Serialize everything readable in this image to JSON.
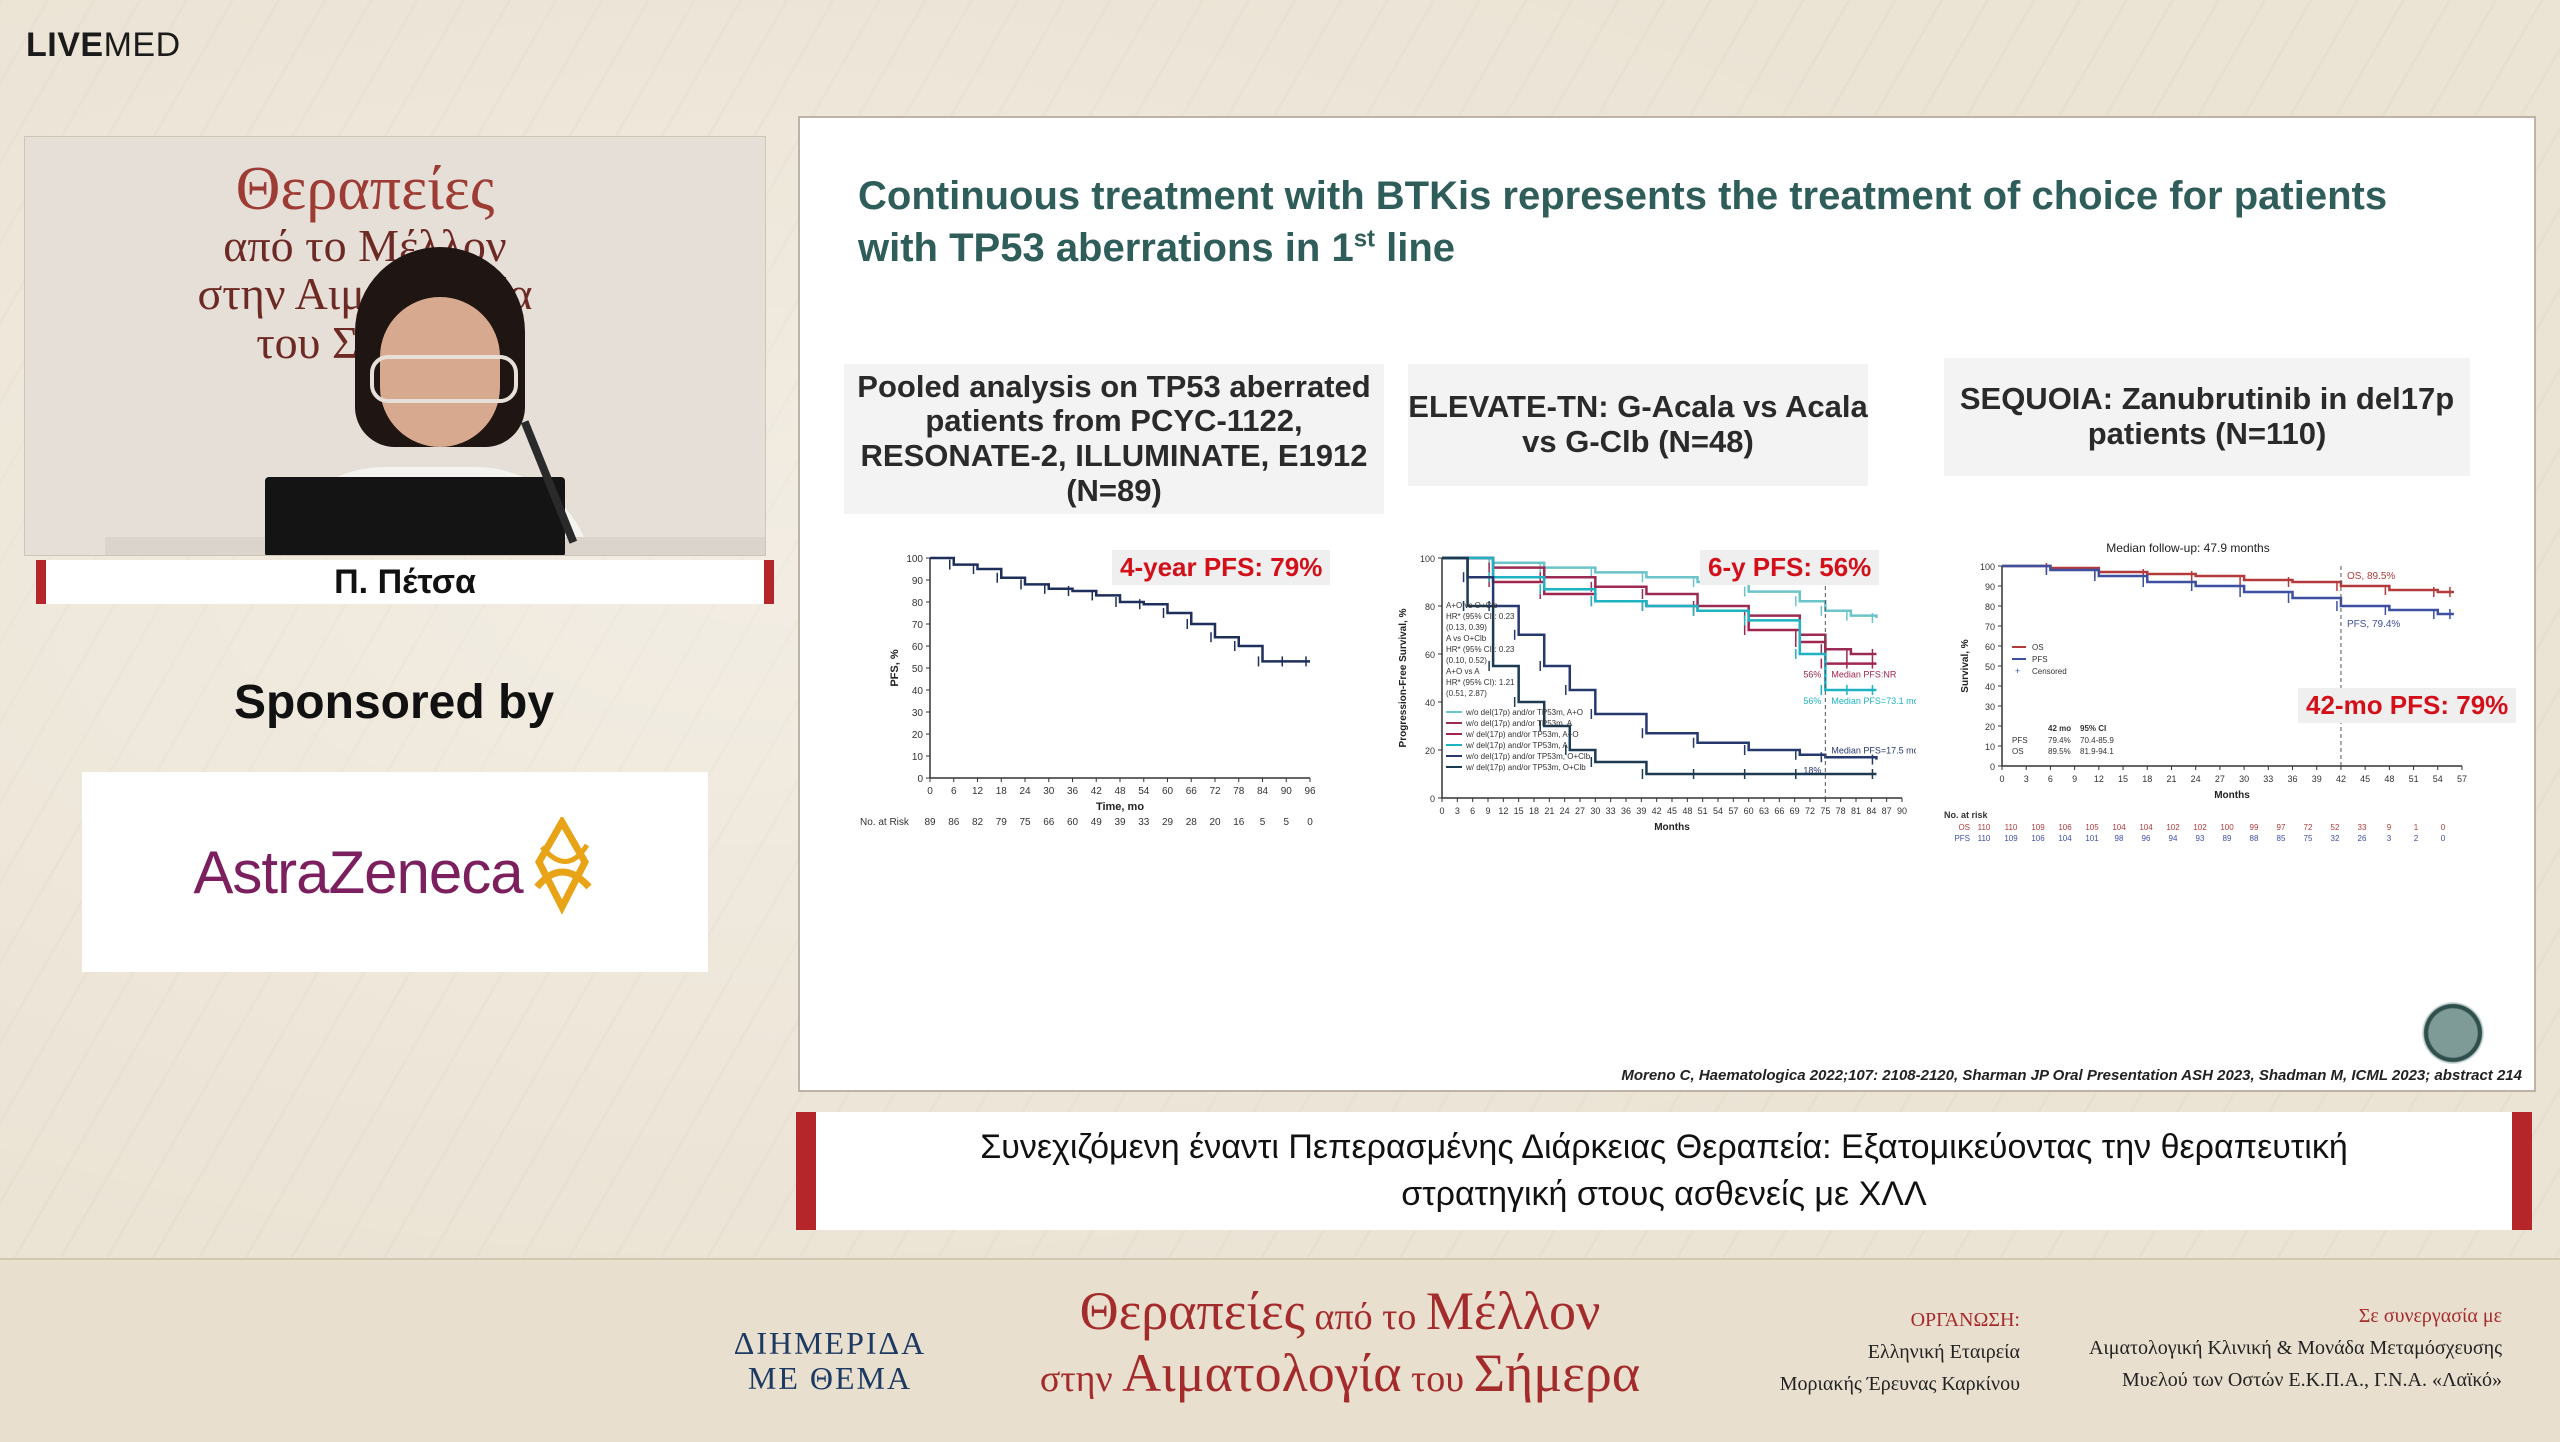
{
  "brand": {
    "logo_bold": "LIVE",
    "logo_rest": "MED"
  },
  "video": {
    "banner_line1": "Θεραπείες",
    "banner_line2": "από το Μέλλον",
    "banner_line3": "στην Αιματολογία",
    "banner_line4": "του Σήμερα"
  },
  "speaker": {
    "name": "Π. Πέτσα"
  },
  "sponsor": {
    "heading": "Sponsored by",
    "name": "AstraZeneca"
  },
  "slide": {
    "title_main": "Continuous treatment with BTKis represents the treatment of choice for patients with TP53 aberrations in 1",
    "title_sup": "st",
    "title_end": " line",
    "panels": [
      {
        "heading": "Pooled analysis on TP53 aberrated patients from PCYC-1122, RESONATE-2, ILLUMINATE, E1912 (N=89)",
        "pfs_label": "4-year PFS: 79%"
      },
      {
        "heading": "ELEVATE-TN: G-Acala vs Acala vs  G-Clb (N=48)",
        "pfs_label": "6-y PFS: 56%"
      },
      {
        "heading": "SEQUOIA: Zanubrutinib in del17p patients (N=110)",
        "pfs_label": "42-mo PFS: 79%"
      }
    ],
    "citation": "Moreno C, Haematologica 2022;107: 2108-2120, Sharman JP Oral Presentation ASH 2023, Shadman M, ICML 2023; abstract 214"
  },
  "chart_data": [
    {
      "type": "line",
      "title": "Pooled analysis PFS",
      "xlabel": "Time, mo",
      "ylabel": "PFS, %",
      "ylim": [
        0,
        100
      ],
      "xlim": [
        0,
        96
      ],
      "x_ticks": [
        "0",
        "6",
        "12",
        "18",
        "24",
        "30",
        "36",
        "42",
        "48",
        "54",
        "60",
        "66",
        "72",
        "78",
        "84",
        "90",
        "96"
      ],
      "y_ticks": [
        "0",
        "10",
        "20",
        "30",
        "40",
        "50",
        "60",
        "70",
        "80",
        "90",
        "100"
      ],
      "series": [
        {
          "name": "PFS",
          "x": [
            0,
            6,
            12,
            18,
            24,
            30,
            36,
            42,
            48,
            54,
            60,
            66,
            72,
            78,
            84,
            90,
            96
          ],
          "values": [
            100,
            97,
            95,
            91,
            88,
            86,
            85,
            83,
            80,
            79,
            75,
            70,
            64,
            60,
            53,
            53,
            53
          ]
        }
      ],
      "at_risk_label": "No. at Risk",
      "at_risk": [
        "89",
        "86",
        "82",
        "79",
        "75",
        "66",
        "60",
        "49",
        "39",
        "33",
        "29",
        "28",
        "20",
        "16",
        "5",
        "5",
        "0"
      ]
    },
    {
      "type": "line",
      "title": "ELEVATE-TN PFS",
      "xlabel": "Months",
      "ylabel": "Progression-Free Survival, %",
      "ylim": [
        0,
        100
      ],
      "xlim": [
        0,
        90
      ],
      "x_ticks": [
        "0",
        "3",
        "6",
        "9",
        "12",
        "15",
        "18",
        "21",
        "24",
        "27",
        "30",
        "33",
        "36",
        "39",
        "42",
        "45",
        "48",
        "51",
        "54",
        "57",
        "60",
        "63",
        "66",
        "69",
        "72",
        "75",
        "78",
        "81",
        "84",
        "87",
        "90"
      ],
      "y_ticks": [
        "0",
        "20",
        "40",
        "60",
        "80",
        "100"
      ],
      "series": [
        {
          "name": "w/o del(17p) and/or TP53m, A+O",
          "color": "#6bc4c9",
          "x": [
            0,
            10,
            20,
            30,
            40,
            50,
            60,
            70,
            75,
            80,
            85
          ],
          "values": [
            100,
            98,
            96,
            94,
            92,
            90,
            86,
            82,
            78,
            76,
            75
          ]
        },
        {
          "name": "w/o del(17p) and/or TP53m, A",
          "color": "#9b2a55",
          "x": [
            0,
            10,
            20,
            30,
            40,
            50,
            60,
            70,
            75,
            80,
            85
          ],
          "values": [
            100,
            96,
            92,
            88,
            85,
            80,
            76,
            68,
            62,
            60,
            60
          ]
        },
        {
          "name": "w/ del(17p) and/or TP53m, A+O",
          "color": "#a02550",
          "x": [
            0,
            10,
            20,
            30,
            40,
            50,
            60,
            70,
            75,
            80,
            85
          ],
          "values": [
            100,
            90,
            85,
            82,
            80,
            78,
            70,
            65,
            56,
            56,
            56
          ]
        },
        {
          "name": "w/ del(17p) and/or TP53m, A",
          "color": "#1db3c3",
          "x": [
            0,
            10,
            20,
            30,
            40,
            50,
            60,
            70,
            75,
            80,
            85
          ],
          "values": [
            100,
            92,
            87,
            82,
            80,
            78,
            74,
            60,
            45,
            45,
            45
          ]
        },
        {
          "name": "w/o del(17p) and/or TP53m, O+Clb",
          "color": "#27386e",
          "x": [
            0,
            5,
            10,
            15,
            20,
            25,
            30,
            40,
            50,
            60,
            70,
            75,
            85
          ],
          "values": [
            100,
            92,
            80,
            68,
            55,
            45,
            35,
            27,
            23,
            20,
            18,
            17,
            16
          ]
        },
        {
          "name": "w/ del(17p) and/or TP53m, O+Clb",
          "color": "#1d3a53",
          "x": [
            0,
            5,
            10,
            15,
            20,
            25,
            30,
            40,
            50,
            60,
            70,
            85
          ],
          "values": [
            100,
            80,
            55,
            40,
            30,
            20,
            15,
            10,
            10,
            10,
            10,
            10
          ]
        }
      ],
      "annotations": [
        "56%",
        "Median PFS:NR",
        "56%",
        "Median PFS=73.1 mo",
        "Median PFS=17.5 mo",
        "18%"
      ],
      "stats": [
        "A+O vs O+Clb",
        "HR* (95% CI): 0.23",
        "(0.13, 0.39)",
        "A vs O+Clb",
        "HR* (95% CI): 0.23",
        "(0.10, 0.52)",
        "A+O vs A",
        "HR* (95% CI): 1.21",
        "(0.51, 2.87)"
      ]
    },
    {
      "type": "line",
      "title": "Median follow-up: 47.9 months",
      "xlabel": "Months",
      "ylabel": "Survival, %",
      "ylim": [
        0,
        100
      ],
      "xlim": [
        0,
        57
      ],
      "x_ticks": [
        "0",
        "3",
        "6",
        "9",
        "12",
        "15",
        "18",
        "21",
        "24",
        "27",
        "30",
        "33",
        "36",
        "39",
        "42",
        "45",
        "48",
        "51",
        "54",
        "57"
      ],
      "y_ticks": [
        "0",
        "10",
        "20",
        "30",
        "40",
        "50",
        "60",
        "70",
        "80",
        "90",
        "100"
      ],
      "series": [
        {
          "name": "OS",
          "color": "#b23a3a",
          "x": [
            0,
            6,
            12,
            18,
            24,
            30,
            36,
            42,
            48,
            54,
            56
          ],
          "values": [
            100,
            99,
            97,
            96,
            95,
            93,
            92,
            90,
            88,
            87,
            87
          ]
        },
        {
          "name": "PFS",
          "color": "#3d4fa0",
          "x": [
            0,
            6,
            12,
            18,
            24,
            30,
            36,
            42,
            48,
            54,
            56
          ],
          "values": [
            100,
            98,
            95,
            92,
            90,
            87,
            84,
            80,
            78,
            76,
            76
          ]
        }
      ],
      "legend": [
        "OS",
        "PFS",
        "Censored"
      ],
      "annotations": [
        "OS, 89.5%",
        "PFS, 79.4%"
      ],
      "stats_table": {
        "header": [
          "42 mo",
          "95% CI"
        ],
        "rows": [
          [
            "PFS",
            "79.4%",
            "70.4-85.9"
          ],
          [
            "OS",
            "89.5%",
            "81.9-94.1"
          ]
        ]
      },
      "at_risk_label": "No. at risk",
      "at_risk": {
        "OS": [
          "110",
          "110",
          "109",
          "106",
          "105",
          "104",
          "104",
          "102",
          "102",
          "100",
          "99",
          "97",
          "72",
          "52",
          "33",
          "9",
          "1",
          "0"
        ],
        "PFS": [
          "110",
          "109",
          "106",
          "104",
          "101",
          "98",
          "96",
          "94",
          "93",
          "89",
          "88",
          "85",
          "75",
          "32",
          "26",
          "3",
          "2",
          "0"
        ]
      }
    }
  ],
  "caption": {
    "line1": "Συνεχιζόμενη έναντι Πεπερασμένης Διάρκειας Θεραπεία: Εξατομικεύοντας την θεραπευτική",
    "line2": "στρατηγική στους ασθενείς με ΧΛΛ"
  },
  "footer": {
    "dimerida_line1": "ΔΙΗΜΕΡΙΔΑ",
    "dimerida_line2": "ΜΕ ΘΕΜΑ",
    "title_w1": "Θεραπείες",
    "title_w2": " από ",
    "title_w3": " το ",
    "title_w4": "Μέλλον",
    "title_w5": "στην ",
    "title_w6": "Αιματολογία",
    "title_w7": " του ",
    "title_w8": "Σήμερα",
    "org_label": "ΟΡΓΑΝΩΣΗ:",
    "org_line1": "Ελληνική Εταιρεία",
    "org_line2": "Μοριακής Έρευνας Καρκίνου",
    "coop_label": "Σε συνεργασία με",
    "coop_line1": "Αιματολογική Κλινική & Μονάδα Μεταμόσχευσης",
    "coop_line2": "Μυελού των Οστών Ε.Κ.Π.Α., Γ.Ν.Α. «Λαϊκό»"
  },
  "colors": {
    "accent_red": "#b5262a",
    "title_teal": "#2f5d5a",
    "pfs_red": "#d3101a",
    "sponsor_purple": "#7b1f5e"
  }
}
